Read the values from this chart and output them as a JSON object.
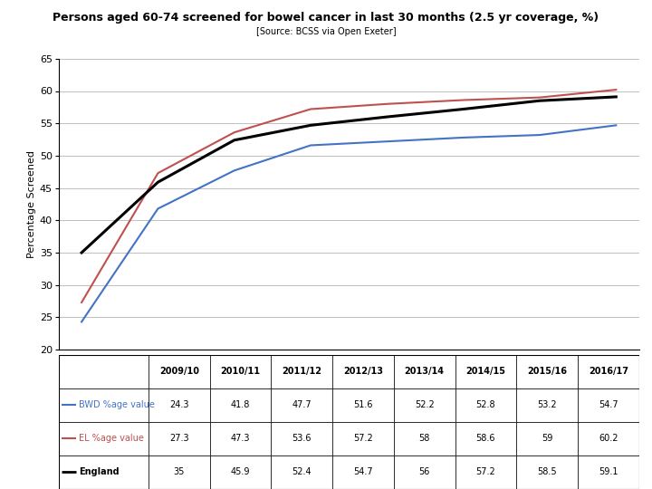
{
  "title_main": "Persons aged 60-74 screened for bowel cancer in last 30 months (2.5 yr coverage, %)",
  "title_source": "[Source: BCSS via Open Exeter]",
  "years": [
    "2009/10",
    "2010/11",
    "2011/12",
    "2012/13",
    "2013/14",
    "2014/15",
    "2015/16",
    "2016/17"
  ],
  "bwd": [
    24.3,
    41.8,
    47.7,
    51.6,
    52.2,
    52.8,
    53.2,
    54.7
  ],
  "el": [
    27.3,
    47.3,
    53.6,
    57.2,
    58.0,
    58.6,
    59.0,
    60.2
  ],
  "england": [
    35.0,
    45.9,
    52.4,
    54.7,
    56.0,
    57.2,
    58.5,
    59.1
  ],
  "bwd_color": "#4472C4",
  "el_color": "#C0504D",
  "england_color": "#000000",
  "ylim_min": 20,
  "ylim_max": 65,
  "yticks": [
    20,
    25,
    30,
    35,
    40,
    45,
    50,
    55,
    60,
    65
  ],
  "ylabel": "Percentage Screened",
  "legend_labels": [
    "BWD %age value",
    "EL %age value",
    "England"
  ],
  "bwd_display": [
    "24.3",
    "41.8",
    "47.7",
    "51.6",
    "52.2",
    "52.8",
    "53.2",
    "54.7"
  ],
  "el_display": [
    "27.3",
    "47.3",
    "53.6",
    "57.2",
    "58",
    "58.6",
    "59",
    "60.2"
  ],
  "england_display": [
    "35",
    "45.9",
    "52.4",
    "54.7",
    "56",
    "57.2",
    "58.5",
    "59.1"
  ]
}
